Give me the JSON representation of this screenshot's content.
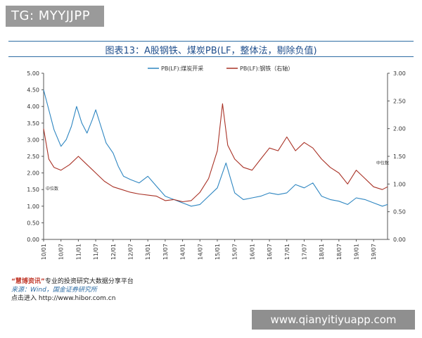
{
  "badge": {
    "text": "TG: MYYJJPP"
  },
  "chart_title": "图表13：A股钢铁、煤炭PB(LF，整体法，剔除负值)",
  "footer": {
    "brand": "“慧博资讯”",
    "line1_rest": "专业的投资研究大数据分享平台",
    "source": "来源：Wind，国金证券研究所",
    "line3": "点击进入  http://www.hibor.com.cn"
  },
  "watermark": {
    "text": "www.qianyitiyuapp.com"
  },
  "chart_data": {
    "type": "line",
    "title": "图表13：A股钢铁、煤炭PB(LF，整体法，剔除负值)",
    "x_tick_labels": [
      "10/01",
      "10/07",
      "11/01",
      "11/07",
      "12/01",
      "12/07",
      "13/01",
      "13/07",
      "14/01",
      "14/07",
      "15/01",
      "15/07",
      "16/01",
      "16/07",
      "17/01",
      "17/07",
      "18/01",
      "18/07",
      "19/01",
      "19/07"
    ],
    "left_axis": {
      "min": 0,
      "max": 5,
      "ticks": [
        "0.00",
        "0.50",
        "1.00",
        "1.50",
        "2.00",
        "2.50",
        "3.00",
        "3.50",
        "4.00",
        "4.50",
        "5.00"
      ]
    },
    "right_axis": {
      "min": 0,
      "max": 3,
      "ticks": [
        "0.00",
        "0.50",
        "1.00",
        "1.50",
        "2.00",
        "2.50",
        "3.00"
      ]
    },
    "annotations": [
      {
        "text": "中位数",
        "series": "PB(LF):煤炭开采",
        "value": 1.4
      },
      {
        "text": "中位数",
        "series": "PB(LF):钢铁（右轴）",
        "value": 1.3
      }
    ],
    "series": [
      {
        "name": "PB(LF):煤炭开采",
        "axis": "left",
        "color": "#2e86c1",
        "x": [
          0,
          0.3,
          0.6,
          1,
          1.3,
          1.6,
          1.9,
          2.2,
          2.5,
          2.8,
          3,
          3.3,
          3.6,
          4,
          4.3,
          4.6,
          5,
          5.5,
          6,
          6.5,
          7,
          7.5,
          8,
          8.5,
          9,
          9.5,
          10,
          10.5,
          11,
          11.5,
          12,
          12.5,
          13,
          13.5,
          14,
          14.5,
          15,
          15.5,
          16,
          16.5,
          17,
          17.5,
          18,
          18.5,
          19,
          19.5,
          19.8
        ],
        "y": [
          4.5,
          3.9,
          3.3,
          2.8,
          3.0,
          3.4,
          4.0,
          3.5,
          3.2,
          3.6,
          3.9,
          3.4,
          2.9,
          2.6,
          2.2,
          1.9,
          1.8,
          1.7,
          1.9,
          1.6,
          1.3,
          1.2,
          1.1,
          1.0,
          1.05,
          1.3,
          1.55,
          2.3,
          1.4,
          1.2,
          1.25,
          1.3,
          1.4,
          1.35,
          1.4,
          1.65,
          1.55,
          1.7,
          1.3,
          1.2,
          1.15,
          1.05,
          1.25,
          1.2,
          1.1,
          1.0,
          1.05
        ]
      },
      {
        "name": "PB(LF):钢铁（右轴）",
        "axis": "right",
        "color": "#a93226",
        "x": [
          0,
          0.3,
          0.6,
          1,
          1.5,
          2,
          2.5,
          3,
          3.5,
          4,
          4.5,
          5,
          5.5,
          6,
          6.5,
          7,
          7.5,
          8,
          8.5,
          9,
          9.5,
          10,
          10.3,
          10.6,
          11,
          11.5,
          12,
          12.5,
          13,
          13.5,
          14,
          14.5,
          15,
          15.5,
          16,
          16.5,
          17,
          17.5,
          18,
          18.5,
          19,
          19.5,
          19.8
        ],
        "y": [
          2.0,
          1.45,
          1.3,
          1.25,
          1.35,
          1.5,
          1.35,
          1.2,
          1.05,
          0.95,
          0.9,
          0.85,
          0.82,
          0.8,
          0.78,
          0.7,
          0.72,
          0.68,
          0.7,
          0.85,
          1.1,
          1.6,
          2.45,
          1.7,
          1.45,
          1.3,
          1.25,
          1.45,
          1.65,
          1.6,
          1.85,
          1.6,
          1.75,
          1.65,
          1.45,
          1.3,
          1.2,
          1.0,
          1.25,
          1.1,
          0.95,
          0.9,
          0.95
        ]
      }
    ]
  }
}
